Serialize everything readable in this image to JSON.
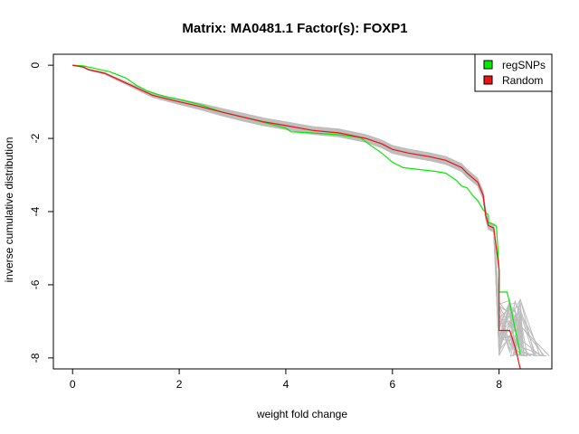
{
  "chart_data": {
    "type": "line",
    "title": "Matrix: MA0481.1 Factor(s): FOXP1",
    "xlabel": "weight fold change",
    "ylabel": "inverse cumulative distribution",
    "xlim": [
      -0.36,
      8.99
    ],
    "ylim": [
      -8.3,
      0.3
    ],
    "xticks": [
      0,
      2,
      4,
      6,
      8
    ],
    "yticks": [
      0,
      -2,
      -4,
      -6,
      -8
    ],
    "grid": false,
    "legend_position": "top-right",
    "colors": {
      "regSNPs": "#00ee00",
      "Random": "#ee1111",
      "random_samples": "#bdbdbd",
      "axis": "#000000"
    },
    "series": [
      {
        "name": "regSNPs",
        "x": [
          0.0,
          0.2,
          0.4,
          0.7,
          1.0,
          1.2,
          1.4,
          1.6,
          1.8,
          2.0,
          2.4,
          2.8,
          3.2,
          3.6,
          4.0,
          4.1,
          4.5,
          5.0,
          5.4,
          5.6,
          5.8,
          6.0,
          6.2,
          6.5,
          6.8,
          7.0,
          7.2,
          7.3,
          7.4,
          7.5,
          7.6,
          7.7,
          7.8,
          7.8,
          7.9,
          7.95,
          8.0,
          8.0,
          8.15,
          8.2,
          8.3,
          8.4
        ],
        "y": [
          0.0,
          -0.02,
          -0.08,
          -0.18,
          -0.35,
          -0.55,
          -0.7,
          -0.8,
          -0.88,
          -0.93,
          -1.08,
          -1.28,
          -1.42,
          -1.57,
          -1.72,
          -1.82,
          -1.85,
          -1.9,
          -1.98,
          -2.2,
          -2.4,
          -2.65,
          -2.8,
          -2.85,
          -2.9,
          -2.95,
          -3.15,
          -3.3,
          -3.35,
          -3.55,
          -3.7,
          -3.95,
          -4.1,
          -4.3,
          -4.35,
          -4.4,
          -5.6,
          -6.2,
          -6.2,
          -6.5,
          -7.2,
          -7.9
        ]
      },
      {
        "name": "Random",
        "x": [
          0.0,
          0.2,
          0.3,
          0.6,
          0.9,
          1.2,
          1.5,
          1.8,
          2.0,
          2.4,
          2.8,
          3.2,
          3.6,
          4.0,
          4.5,
          5.0,
          5.5,
          5.8,
          6.0,
          6.3,
          6.7,
          7.0,
          7.3,
          7.4,
          7.6,
          7.7,
          7.75,
          7.8,
          7.9,
          8.0,
          8.0,
          8.2,
          8.3,
          8.4
        ],
        "y": [
          0.0,
          -0.05,
          -0.12,
          -0.22,
          -0.42,
          -0.62,
          -0.82,
          -0.93,
          -1.0,
          -1.13,
          -1.28,
          -1.42,
          -1.55,
          -1.65,
          -1.78,
          -1.85,
          -2.0,
          -2.15,
          -2.3,
          -2.4,
          -2.5,
          -2.6,
          -2.8,
          -2.95,
          -3.2,
          -3.55,
          -4.1,
          -4.38,
          -4.45,
          -5.6,
          -7.25,
          -7.25,
          -7.7,
          -8.3
        ]
      }
    ]
  },
  "legend": {
    "items": [
      "regSNPs",
      "Random"
    ]
  }
}
